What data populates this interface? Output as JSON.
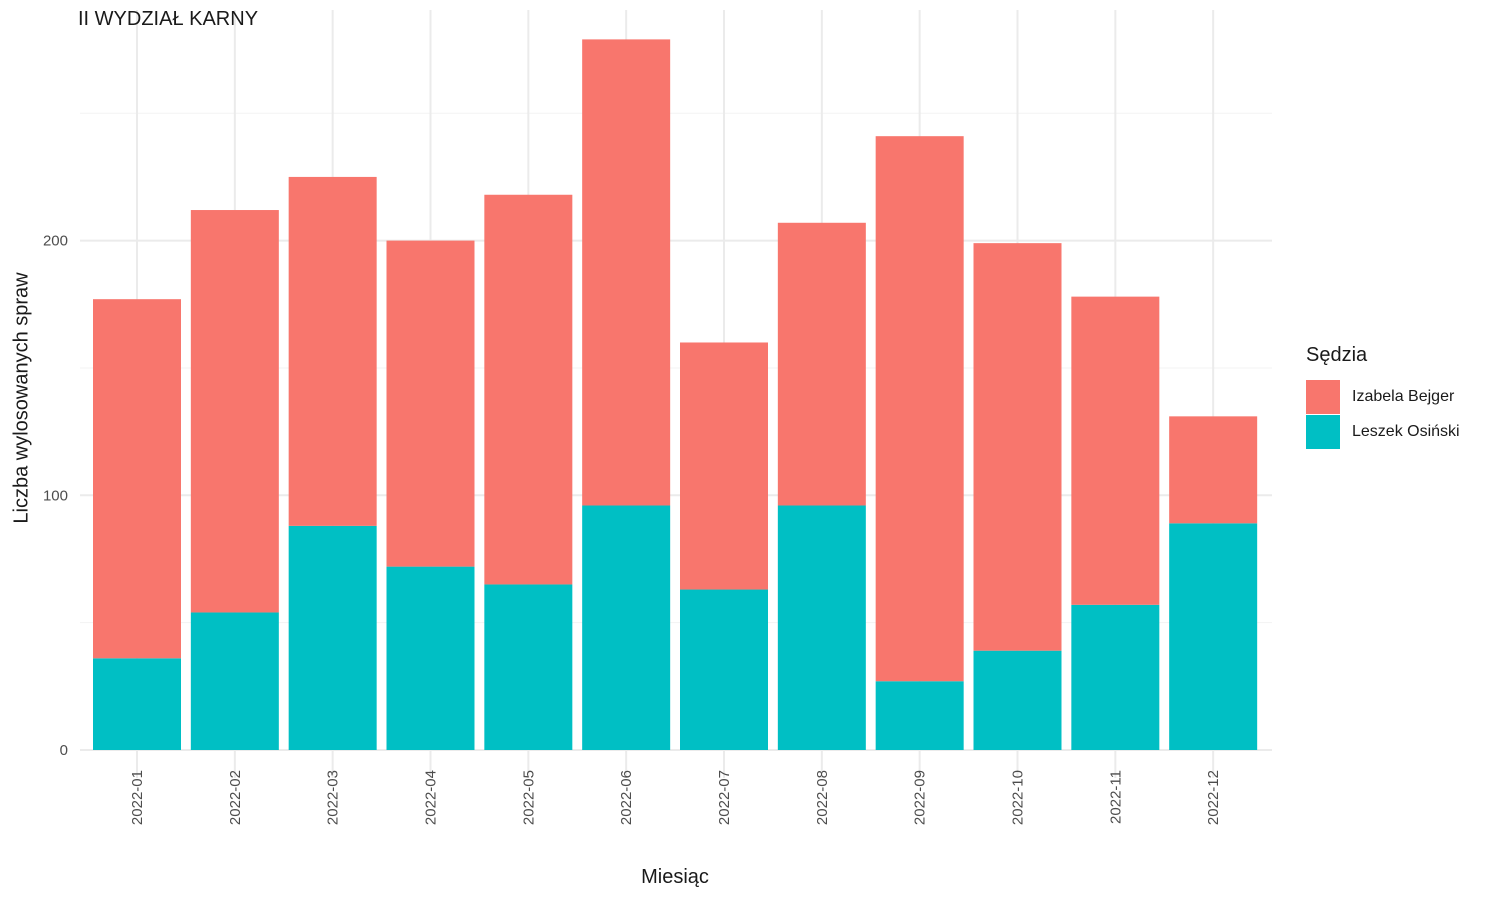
{
  "chart_data": {
    "type": "bar",
    "stacked": true,
    "title": "II WYDZIAŁ KARNY",
    "xlabel": "Miesiąc",
    "ylabel": "Liczba wylosowanych spraw",
    "categories": [
      "2022-01",
      "2022-02",
      "2022-03",
      "2022-04",
      "2022-05",
      "2022-06",
      "2022-07",
      "2022-08",
      "2022-09",
      "2022-10",
      "2022-11",
      "2022-12"
    ],
    "series": [
      {
        "name": "Izabela Bejger",
        "color": "#F8766D",
        "values": [
          141,
          158,
          137,
          128,
          153,
          183,
          97,
          111,
          214,
          160,
          121,
          42
        ]
      },
      {
        "name": "Leszek Osiński",
        "color": "#00BFC4",
        "values": [
          36,
          54,
          88,
          72,
          65,
          96,
          63,
          96,
          27,
          39,
          57,
          89
        ]
      }
    ],
    "ylim": [
      0,
      290
    ],
    "yticks": [
      0,
      100,
      200
    ],
    "grid": true,
    "legend": {
      "title": "Sędzia",
      "position": "right"
    }
  }
}
